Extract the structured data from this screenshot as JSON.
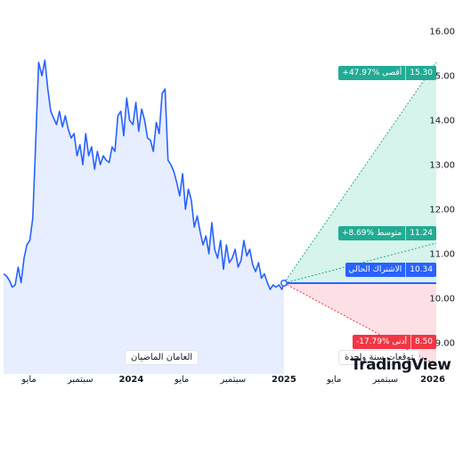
{
  "chart_data": {
    "type": "line",
    "history": {
      "x": [
        "2023-03-01",
        "2023-03-08",
        "2023-03-15",
        "2023-03-22",
        "2023-03-29",
        "2023-04-05",
        "2023-04-12",
        "2023-04-19",
        "2023-04-26",
        "2023-05-03",
        "2023-05-10",
        "2023-05-17",
        "2023-05-24",
        "2023-06-01",
        "2023-06-08",
        "2023-06-15",
        "2023-06-22",
        "2023-06-29",
        "2023-07-06",
        "2023-07-13",
        "2023-07-20",
        "2023-07-27",
        "2023-08-03",
        "2023-08-10",
        "2023-08-17",
        "2023-08-24",
        "2023-08-31",
        "2023-09-07",
        "2023-09-14",
        "2023-09-21",
        "2023-09-28",
        "2023-10-05",
        "2023-10-12",
        "2023-10-19",
        "2023-10-26",
        "2023-11-02",
        "2023-11-09",
        "2023-11-16",
        "2023-11-23",
        "2023-11-30",
        "2023-12-07",
        "2023-12-14",
        "2023-12-21",
        "2023-12-28",
        "2024-01-05",
        "2024-01-12",
        "2024-01-19",
        "2024-01-26",
        "2024-02-02",
        "2024-02-09",
        "2024-02-16",
        "2024-02-23",
        "2024-03-01",
        "2024-03-08",
        "2024-03-15",
        "2024-03-22",
        "2024-03-29",
        "2024-04-05",
        "2024-04-12",
        "2024-04-19",
        "2024-04-26",
        "2024-05-03",
        "2024-05-10",
        "2024-05-17",
        "2024-05-24",
        "2024-05-31",
        "2024-06-07",
        "2024-06-14",
        "2024-06-21",
        "2024-06-28",
        "2024-07-05",
        "2024-07-12",
        "2024-07-19",
        "2024-07-26",
        "2024-08-02",
        "2024-08-09",
        "2024-08-16",
        "2024-08-23",
        "2024-08-30",
        "2024-09-06",
        "2024-09-13",
        "2024-09-20",
        "2024-09-27",
        "2024-10-04",
        "2024-10-11",
        "2024-10-18",
        "2024-10-25",
        "2024-11-01",
        "2024-11-08",
        "2024-11-15",
        "2024-11-22",
        "2024-11-29",
        "2024-12-06",
        "2024-12-13",
        "2024-12-20",
        "2024-12-27",
        "2025-01-01"
      ],
      "y": [
        10.55,
        10.5,
        10.4,
        10.25,
        10.3,
        10.7,
        10.35,
        10.9,
        11.2,
        11.3,
        11.8,
        13.5,
        15.3,
        15.0,
        15.35,
        14.7,
        14.2,
        14.05,
        13.9,
        14.2,
        13.85,
        14.1,
        13.8,
        13.6,
        13.7,
        13.2,
        13.45,
        13.0,
        13.7,
        13.2,
        13.4,
        12.9,
        13.3,
        13.0,
        13.2,
        13.1,
        13.05,
        13.4,
        13.3,
        14.1,
        14.2,
        13.65,
        14.5,
        14.0,
        13.9,
        14.4,
        13.75,
        14.25,
        14.0,
        13.6,
        13.55,
        13.3,
        13.95,
        13.7,
        14.6,
        14.7,
        13.1,
        13.0,
        12.85,
        12.6,
        12.3,
        12.8,
        12.0,
        12.45,
        12.2,
        11.6,
        11.85,
        11.5,
        11.2,
        11.4,
        11.0,
        11.7,
        11.1,
        10.9,
        11.3,
        10.65,
        11.2,
        10.8,
        10.9,
        11.1,
        10.7,
        10.85,
        11.3,
        10.95,
        11.1,
        10.75,
        10.6,
        10.8,
        10.45,
        10.55,
        10.35,
        10.2,
        10.3,
        10.25,
        10.3,
        10.2,
        10.34
      ]
    },
    "forecast": {
      "start": [
        "2025-01-01",
        10.34
      ],
      "end_date": "2026-01-01",
      "max": 15.3,
      "avg": 11.24,
      "min": 8.5,
      "current": 10.34
    },
    "ylim": [
      8.3,
      16.3
    ],
    "y_ticks": [
      "16.00",
      "15.00",
      "14.00",
      "13.00",
      "12.00",
      "11.00",
      "10.00",
      "9.00"
    ],
    "x_ticks": [
      {
        "date": "2023-05-01",
        "label": "مايو",
        "strong": false
      },
      {
        "date": "2023-09-01",
        "label": "سبتمبر",
        "strong": false
      },
      {
        "date": "2024-01-01",
        "label": "2024",
        "strong": true
      },
      {
        "date": "2024-05-01",
        "label": "مايو",
        "strong": false
      },
      {
        "date": "2024-09-01",
        "label": "سبتمبر",
        "strong": false
      },
      {
        "date": "2025-01-01",
        "label": "2025",
        "strong": true
      },
      {
        "date": "2025-05-01",
        "label": "مايو",
        "strong": false
      },
      {
        "date": "2025-09-01",
        "label": "سبتمبر",
        "strong": false
      },
      {
        "date": "2026-01-01",
        "label": "2026",
        "strong": true
      }
    ],
    "colors": {
      "history_line": "#2962ff",
      "history_fill": "#e3ebff",
      "max": "#22ab94",
      "avg": "#22ab94",
      "min": "#f23645",
      "current": "#2962ff",
      "up_fill": "#d6f3ec",
      "down_fill": "#fde0e6"
    }
  },
  "labels": {
    "past_period": "العامان الماضيان",
    "forecast_period": "توقعات سنة واحدة",
    "max_label": "+47.97% أقصى",
    "max_value": "15.30",
    "avg_label": "+8.69% متوسط",
    "avg_value": "11.24",
    "current_label": "الاشتراك الحالي",
    "current_value": "10.34",
    "min_label": "-17.79% أدنى",
    "min_value": "8.50",
    "watermark": "TradingView"
  }
}
